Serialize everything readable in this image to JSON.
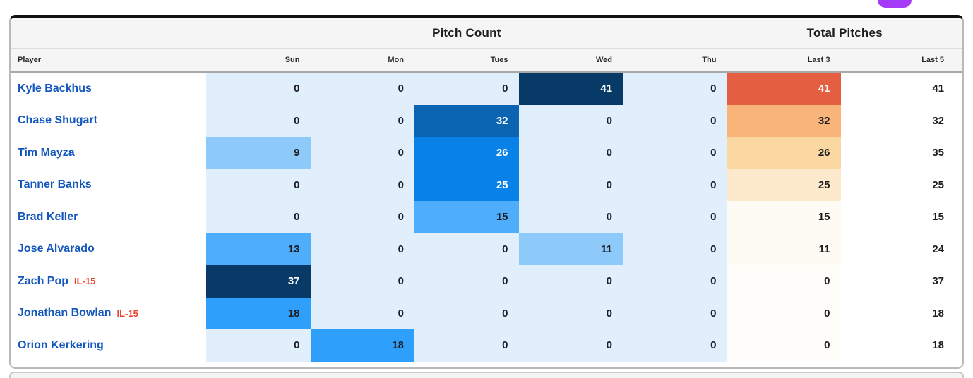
{
  "page": {
    "top_button_color": "#a43af7"
  },
  "table": {
    "group_headers": {
      "pitch_count": "Pitch Count",
      "total_pitches": "Total Pitches"
    },
    "columns": [
      "Player",
      "Sun",
      "Mon",
      "Tues",
      "Wed",
      "Thu",
      "Last 3",
      "Last 5"
    ],
    "colors": {
      "day_zero_bg": "#e1eefb",
      "heat_blue_scale": [
        "#e1eefb",
        "#8dc9f9",
        "#4faefb",
        "#2e9ffb",
        "#0881e8",
        "#0a64b2",
        "#073a66"
      ],
      "heat_orange_scale": [
        "#fffdf9",
        "#fefbf4",
        "#fdeacd",
        "#fbd8a2",
        "#f8b479",
        "#e45f41"
      ],
      "player_link": "#1356bd",
      "il_tag": "#e8432c"
    },
    "rows": [
      {
        "player": "Kyle Backhus",
        "il": "",
        "days": [
          {
            "v": "0",
            "bg": "#e1eefb",
            "fg": "#1d1d1f"
          },
          {
            "v": "0",
            "bg": "#e1eefb",
            "fg": "#1d1d1f"
          },
          {
            "v": "0",
            "bg": "#e1eefb",
            "fg": "#1d1d1f"
          },
          {
            "v": "41",
            "bg": "#073a66",
            "fg": "#ffffff"
          },
          {
            "v": "0",
            "bg": "#e1eefb",
            "fg": "#1d1d1f"
          }
        ],
        "last3": {
          "v": "41",
          "bg": "#e45f41",
          "fg": "#ffffff"
        },
        "last5": "41"
      },
      {
        "player": "Chase Shugart",
        "il": "",
        "days": [
          {
            "v": "0",
            "bg": "#e1eefb",
            "fg": "#1d1d1f"
          },
          {
            "v": "0",
            "bg": "#e1eefb",
            "fg": "#1d1d1f"
          },
          {
            "v": "32",
            "bg": "#0a64b2",
            "fg": "#ffffff"
          },
          {
            "v": "0",
            "bg": "#e1eefb",
            "fg": "#1d1d1f"
          },
          {
            "v": "0",
            "bg": "#e1eefb",
            "fg": "#1d1d1f"
          }
        ],
        "last3": {
          "v": "32",
          "bg": "#f8b479",
          "fg": "#1d1d1f"
        },
        "last5": "32"
      },
      {
        "player": "Tim Mayza",
        "il": "",
        "days": [
          {
            "v": "9",
            "bg": "#8dc9f9",
            "fg": "#1d1d1f"
          },
          {
            "v": "0",
            "bg": "#e1eefb",
            "fg": "#1d1d1f"
          },
          {
            "v": "26",
            "bg": "#0881e8",
            "fg": "#ffffff"
          },
          {
            "v": "0",
            "bg": "#e1eefb",
            "fg": "#1d1d1f"
          },
          {
            "v": "0",
            "bg": "#e1eefb",
            "fg": "#1d1d1f"
          }
        ],
        "last3": {
          "v": "26",
          "bg": "#fbd8a2",
          "fg": "#1d1d1f"
        },
        "last5": "35"
      },
      {
        "player": "Tanner Banks",
        "il": "",
        "days": [
          {
            "v": "0",
            "bg": "#e1eefb",
            "fg": "#1d1d1f"
          },
          {
            "v": "0",
            "bg": "#e1eefb",
            "fg": "#1d1d1f"
          },
          {
            "v": "25",
            "bg": "#0881e8",
            "fg": "#ffffff"
          },
          {
            "v": "0",
            "bg": "#e1eefb",
            "fg": "#1d1d1f"
          },
          {
            "v": "0",
            "bg": "#e1eefb",
            "fg": "#1d1d1f"
          }
        ],
        "last3": {
          "v": "25",
          "bg": "#fdeacd",
          "fg": "#1d1d1f"
        },
        "last5": "25"
      },
      {
        "player": "Brad Keller",
        "il": "",
        "days": [
          {
            "v": "0",
            "bg": "#e1eefb",
            "fg": "#1d1d1f"
          },
          {
            "v": "0",
            "bg": "#e1eefb",
            "fg": "#1d1d1f"
          },
          {
            "v": "15",
            "bg": "#4faefb",
            "fg": "#1d1d1f"
          },
          {
            "v": "0",
            "bg": "#e1eefb",
            "fg": "#1d1d1f"
          },
          {
            "v": "0",
            "bg": "#e1eefb",
            "fg": "#1d1d1f"
          }
        ],
        "last3": {
          "v": "15",
          "bg": "#fefbf4",
          "fg": "#1d1d1f"
        },
        "last5": "15"
      },
      {
        "player": "Jose Alvarado",
        "il": "",
        "days": [
          {
            "v": "13",
            "bg": "#4faefb",
            "fg": "#1d1d1f"
          },
          {
            "v": "0",
            "bg": "#e1eefb",
            "fg": "#1d1d1f"
          },
          {
            "v": "0",
            "bg": "#e1eefb",
            "fg": "#1d1d1f"
          },
          {
            "v": "11",
            "bg": "#8dc9f9",
            "fg": "#1d1d1f"
          },
          {
            "v": "0",
            "bg": "#e1eefb",
            "fg": "#1d1d1f"
          }
        ],
        "last3": {
          "v": "11",
          "bg": "#fefbf4",
          "fg": "#1d1d1f"
        },
        "last5": "24"
      },
      {
        "player": "Zach Pop",
        "il": "IL-15",
        "days": [
          {
            "v": "37",
            "bg": "#073a66",
            "fg": "#ffffff"
          },
          {
            "v": "0",
            "bg": "#e1eefb",
            "fg": "#1d1d1f"
          },
          {
            "v": "0",
            "bg": "#e1eefb",
            "fg": "#1d1d1f"
          },
          {
            "v": "0",
            "bg": "#e1eefb",
            "fg": "#1d1d1f"
          },
          {
            "v": "0",
            "bg": "#e1eefb",
            "fg": "#1d1d1f"
          }
        ],
        "last3": {
          "v": "0",
          "bg": "#fffdf9",
          "fg": "#1d1d1f"
        },
        "last5": "37"
      },
      {
        "player": "Jonathan Bowlan",
        "il": "IL-15",
        "days": [
          {
            "v": "18",
            "bg": "#2e9ffb",
            "fg": "#1d1d1f"
          },
          {
            "v": "0",
            "bg": "#e1eefb",
            "fg": "#1d1d1f"
          },
          {
            "v": "0",
            "bg": "#e1eefb",
            "fg": "#1d1d1f"
          },
          {
            "v": "0",
            "bg": "#e1eefb",
            "fg": "#1d1d1f"
          },
          {
            "v": "0",
            "bg": "#e1eefb",
            "fg": "#1d1d1f"
          }
        ],
        "last3": {
          "v": "0",
          "bg": "#fffdf9",
          "fg": "#1d1d1f"
        },
        "last5": "18"
      },
      {
        "player": "Orion Kerkering",
        "il": "",
        "days": [
          {
            "v": "0",
            "bg": "#e1eefb",
            "fg": "#1d1d1f"
          },
          {
            "v": "18",
            "bg": "#2e9ffb",
            "fg": "#1d1d1f"
          },
          {
            "v": "0",
            "bg": "#e1eefb",
            "fg": "#1d1d1f"
          },
          {
            "v": "0",
            "bg": "#e1eefb",
            "fg": "#1d1d1f"
          },
          {
            "v": "0",
            "bg": "#e1eefb",
            "fg": "#1d1d1f"
          }
        ],
        "last3": {
          "v": "0",
          "bg": "#fffdf9",
          "fg": "#1d1d1f"
        },
        "last5": "18"
      }
    ]
  }
}
